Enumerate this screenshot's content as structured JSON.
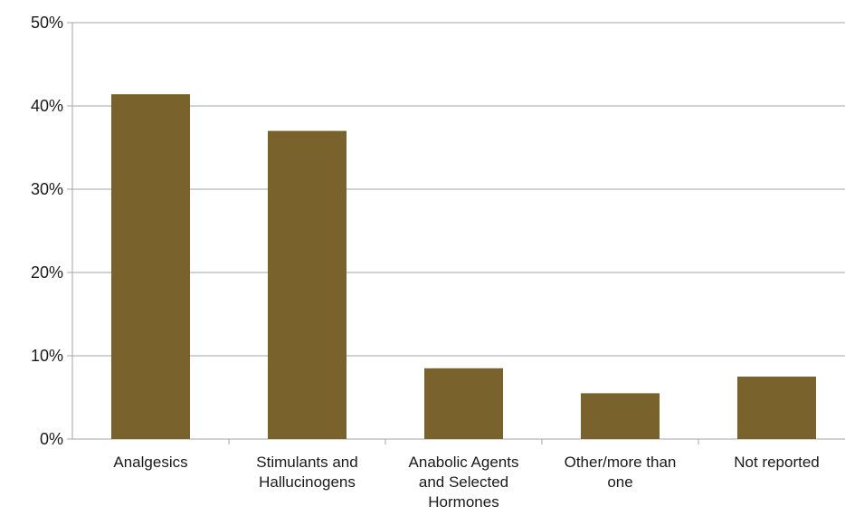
{
  "colors": {
    "bar": "#7a622c",
    "gridline": "#a6a6a6",
    "axis": "#a6a6a6",
    "background": "#ffffff"
  },
  "chart_data": {
    "type": "bar",
    "title": "",
    "xlabel": "",
    "ylabel": "",
    "categories": [
      "Analgesics",
      "Stimulants and Hallucinogens",
      "Anabolic Agents and Selected Hormones",
      "Other/more than one",
      "Not reported"
    ],
    "category_label_lines": [
      [
        "Analgesics"
      ],
      [
        "Stimulants and",
        "Hallucinogens"
      ],
      [
        "Anabolic Agents",
        "and Selected",
        "Hormones"
      ],
      [
        "Other/more than",
        "one"
      ],
      [
        "Not reported"
      ]
    ],
    "values": [
      41.4,
      37.0,
      8.5,
      5.5,
      7.5
    ],
    "ylim": [
      0,
      50
    ],
    "yticks": [
      0,
      10,
      20,
      30,
      40,
      50
    ],
    "ytick_labels": [
      "0%",
      "10%",
      "20%",
      "30%",
      "40%",
      "50%"
    ],
    "grid": true,
    "legend": "none"
  }
}
